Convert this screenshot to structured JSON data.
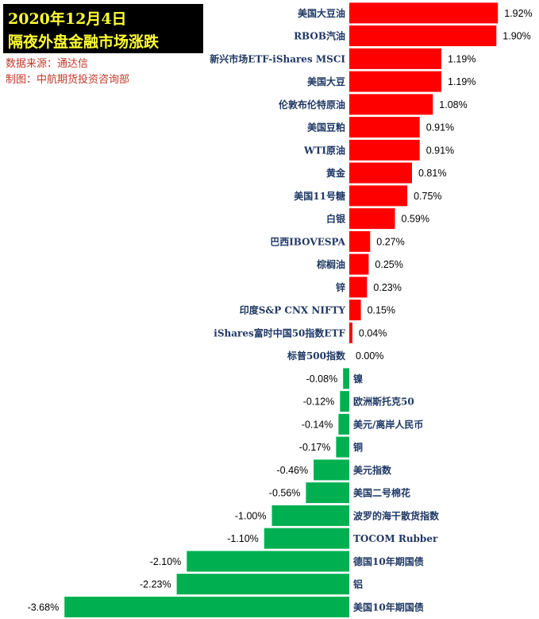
{
  "header": {
    "date": "2020年12月4日",
    "title": "隔夜外盘金融市场涨跌",
    "source": "数据来源：通达信",
    "producer": "制图：中航期货投资咨询部"
  },
  "colors": {
    "positive": "#ff0000",
    "negative": "#00b050",
    "label": "#1f3864",
    "value": "#000000"
  },
  "chart_data": {
    "type": "bar",
    "orientation": "horizontal",
    "categories": [
      "美国大豆油",
      "RBOB汽油",
      "新兴市场ETF-iShares MSCI",
      "美国大豆",
      "伦敦布伦特原油",
      "美国豆粕",
      "WTI原油",
      "黄金",
      "美国11号糖",
      "白银",
      "巴西IBOVESPA",
      "棕榈油",
      "锌",
      "印度S&P CNX NIFTY",
      "iShares富时中国50指数ETF",
      "标普500指数",
      "镍",
      "欧洲斯托克50",
      "美元/离岸人民币",
      "铜",
      "美元指数",
      "美国二号棉花",
      "波罗的海干散货指数",
      "TOCOM Rubber",
      "德国10年期国债",
      "铝",
      "美国10年期国债"
    ],
    "values": [
      1.92,
      1.9,
      1.19,
      1.19,
      1.08,
      0.91,
      0.91,
      0.81,
      0.75,
      0.59,
      0.27,
      0.25,
      0.23,
      0.15,
      0.04,
      0.0,
      -0.08,
      -0.12,
      -0.14,
      -0.17,
      -0.46,
      -0.56,
      -1.0,
      -1.1,
      -2.1,
      -2.23,
      -3.68
    ],
    "value_labels": [
      "1.92%",
      "1.90%",
      "1.19%",
      "1.19%",
      "1.08%",
      "0.91%",
      "0.91%",
      "0.81%",
      "0.75%",
      "0.59%",
      "0.27%",
      "0.25%",
      "0.23%",
      "0.15%",
      "0.04%",
      "0.00%",
      "-0.08%",
      "-0.12%",
      "-0.14%",
      "-0.17%",
      "-0.46%",
      "-0.56%",
      "-1.00%",
      "-1.10%",
      "-2.10%",
      "-2.23%",
      "-3.68%"
    ],
    "unit": "%",
    "grid": false,
    "legend": "none"
  }
}
